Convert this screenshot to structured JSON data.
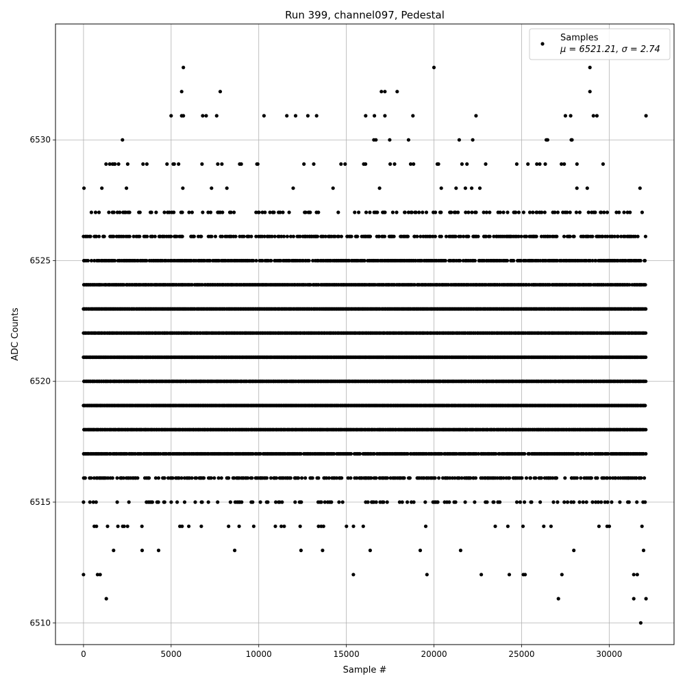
{
  "chart_data": {
    "type": "scatter",
    "title": "Run 399, channel097, Pedestal",
    "xlabel": "Sample #",
    "ylabel": "ADC Counts",
    "xlim": [
      -1600,
      33700
    ],
    "ylim": [
      6509.1,
      6534.8
    ],
    "x_ticks": [
      0,
      5000,
      10000,
      15000,
      20000,
      25000,
      30000
    ],
    "y_ticks": [
      6510,
      6515,
      6520,
      6525,
      6530
    ],
    "grid": true,
    "legend": {
      "placement": "top-right",
      "label": "Samples",
      "stats": "μ = 6521.21, σ = 2.74"
    },
    "series": [
      {
        "name": "Samples",
        "color": "#000000",
        "x_range": [
          0,
          32100
        ],
        "level_density": [
          {
            "y": 6510,
            "density": 0
          },
          {
            "y": 6511,
            "density": 0
          },
          {
            "y": 6512,
            "density": 0
          },
          {
            "y": 6513,
            "density": 0.012
          },
          {
            "y": 6514,
            "density": 0.04
          },
          {
            "y": 6515,
            "density": 0.2
          },
          {
            "y": 6516,
            "density": 0.5
          },
          {
            "y": 6517,
            "density": 0.9
          },
          {
            "y": 6518,
            "density": 1
          },
          {
            "y": 6519,
            "density": 1
          },
          {
            "y": 6520,
            "density": 1
          },
          {
            "y": 6521,
            "density": 1
          },
          {
            "y": 6522,
            "density": 1
          },
          {
            "y": 6523,
            "density": 1
          },
          {
            "y": 6524,
            "density": 0.95
          },
          {
            "y": 6525,
            "density": 0.75
          },
          {
            "y": 6526,
            "density": 0.45
          },
          {
            "y": 6527,
            "density": 0.22
          },
          {
            "y": 6528,
            "density": 0.03
          },
          {
            "y": 6529,
            "density": 0.06
          },
          {
            "y": 6530,
            "density": 0.012
          },
          {
            "y": 6531,
            "density": 0
          },
          {
            "y": 6532,
            "density": 0
          },
          {
            "y": 6533,
            "density": 0
          }
        ],
        "points": [
          {
            "x": 0,
            "y": 6512
          },
          {
            "x": 800,
            "y": 6512
          },
          {
            "x": 950,
            "y": 6512
          },
          {
            "x": 15400,
            "y": 6512
          },
          {
            "x": 19600,
            "y": 6512
          },
          {
            "x": 22700,
            "y": 6512
          },
          {
            "x": 24300,
            "y": 6512
          },
          {
            "x": 25100,
            "y": 6512
          },
          {
            "x": 25200,
            "y": 6512
          },
          {
            "x": 27300,
            "y": 6512
          },
          {
            "x": 31400,
            "y": 6512
          },
          {
            "x": 31600,
            "y": 6512
          },
          {
            "x": 1300,
            "y": 6511
          },
          {
            "x": 27100,
            "y": 6511
          },
          {
            "x": 31400,
            "y": 6511
          },
          {
            "x": 32100,
            "y": 6511
          },
          {
            "x": 31800,
            "y": 6510
          },
          {
            "x": 5000,
            "y": 6531
          },
          {
            "x": 5600,
            "y": 6531
          },
          {
            "x": 5700,
            "y": 6531
          },
          {
            "x": 6800,
            "y": 6531
          },
          {
            "x": 7000,
            "y": 6531
          },
          {
            "x": 7600,
            "y": 6531
          },
          {
            "x": 10300,
            "y": 6531
          },
          {
            "x": 11600,
            "y": 6531
          },
          {
            "x": 12100,
            "y": 6531
          },
          {
            "x": 12800,
            "y": 6531
          },
          {
            "x": 13300,
            "y": 6531
          },
          {
            "x": 16100,
            "y": 6531
          },
          {
            "x": 16600,
            "y": 6531
          },
          {
            "x": 17200,
            "y": 6531
          },
          {
            "x": 18800,
            "y": 6531
          },
          {
            "x": 22400,
            "y": 6531
          },
          {
            "x": 27500,
            "y": 6531
          },
          {
            "x": 27800,
            "y": 6531
          },
          {
            "x": 29100,
            "y": 6531
          },
          {
            "x": 29300,
            "y": 6531
          },
          {
            "x": 32100,
            "y": 6531
          },
          {
            "x": 5600,
            "y": 6532
          },
          {
            "x": 7800,
            "y": 6532
          },
          {
            "x": 17000,
            "y": 6532
          },
          {
            "x": 17200,
            "y": 6532
          },
          {
            "x": 17900,
            "y": 6532
          },
          {
            "x": 28900,
            "y": 6532
          },
          {
            "x": 5700,
            "y": 6533
          },
          {
            "x": 20000,
            "y": 6533
          },
          {
            "x": 28900,
            "y": 6533
          }
        ]
      }
    ]
  }
}
